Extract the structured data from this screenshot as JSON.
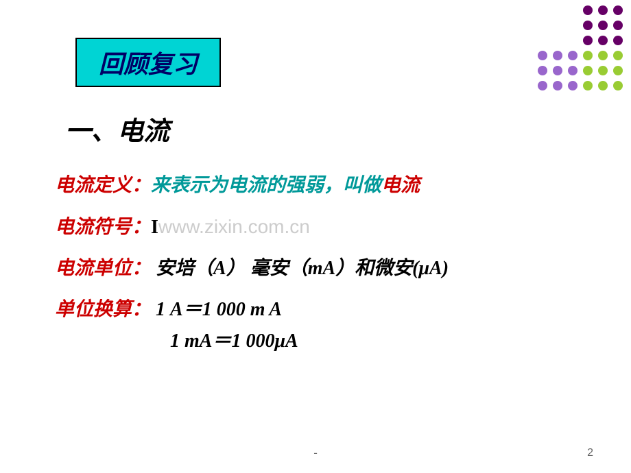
{
  "decoration": {
    "dot_colors": [
      "#ffffff",
      "#ffffff",
      "#ffffff",
      "#660066",
      "#660066",
      "#660066",
      "#ffffff",
      "#ffffff",
      "#ffffff",
      "#660066",
      "#660066",
      "#660066",
      "#ffffff",
      "#ffffff",
      "#ffffff",
      "#660066",
      "#660066",
      "#660066",
      "#9966cc",
      "#9966cc",
      "#9966cc",
      "#99cc33",
      "#99cc33",
      "#99cc33",
      "#9966cc",
      "#9966cc",
      "#9966cc",
      "#99cc33",
      "#99cc33",
      "#99cc33",
      "#9966cc",
      "#9966cc",
      "#9966cc",
      "#99cc33",
      "#99cc33",
      "#99cc33"
    ]
  },
  "review_box": {
    "title": "回顾复习",
    "bg_color": "#00d4d4",
    "border_color": "#000000",
    "text_color": "#000066"
  },
  "section": {
    "title": "一、电流"
  },
  "lines": {
    "def_label": "电流定义：",
    "def_text": "来表示为电流的强弱，叫做",
    "def_highlight": "电流",
    "symbol_label": "电流符号：",
    "symbol_value": "I",
    "watermark": "www.zixin.com.cn",
    "unit_label": "电流单位：",
    "unit_text": " 安培（A） 毫安（mA）和微安(μA)",
    "convert_label": "单位换算：",
    "convert_1": " 1 A＝1 000 m A",
    "convert_2": "1 mA＝1 000μA"
  },
  "footer": {
    "dash": "-",
    "page": "2"
  },
  "colors": {
    "red": "#cc0000",
    "teal": "#009999",
    "black": "#000000"
  }
}
